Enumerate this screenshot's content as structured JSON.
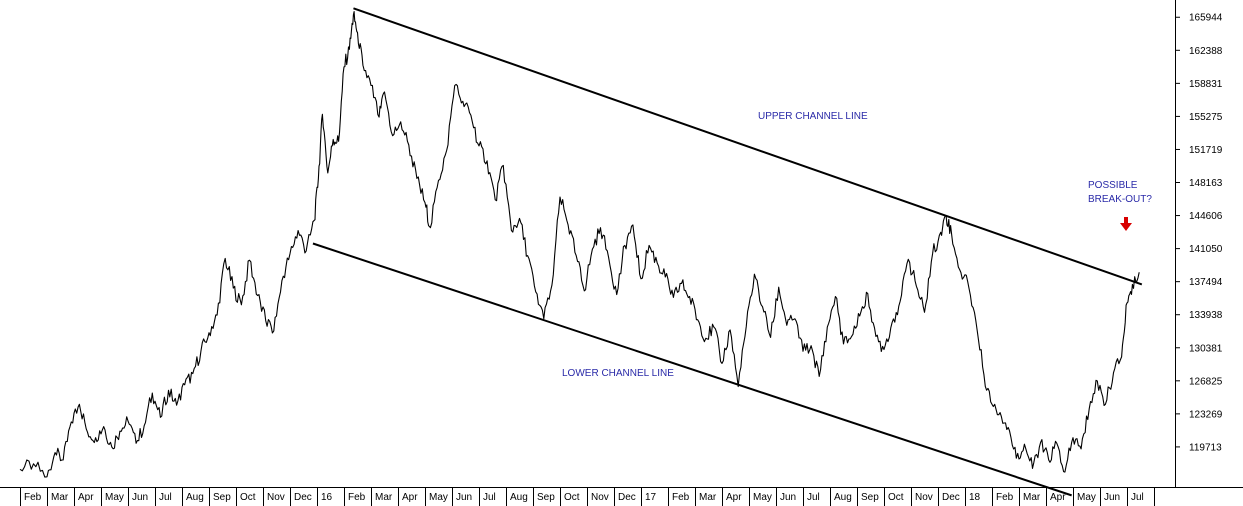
{
  "chart_data": {
    "type": "line",
    "title": "",
    "xlabel": "",
    "ylabel": "",
    "grid": false,
    "ylim": [
      115400,
      167800
    ],
    "y_ticks": [
      165944,
      162388,
      158831,
      155275,
      151719,
      148163,
      144606,
      141050,
      137494,
      133938,
      130381,
      126825,
      123269,
      119713
    ],
    "x_tick_labels": [
      "Feb",
      "Mar",
      "Apr",
      "May",
      "Jun",
      "Jul",
      "Aug",
      "Sep",
      "Oct",
      "Nov",
      "Dec",
      "16",
      "Feb",
      "Mar",
      "Apr",
      "May",
      "Jun",
      "Jul",
      "Aug",
      "Sep",
      "Oct",
      "Nov",
      "Dec",
      "17",
      "Feb",
      "Mar",
      "Apr",
      "May",
      "Jun",
      "Jul",
      "Aug",
      "Sep",
      "Oct",
      "Nov",
      "Dec",
      "18",
      "Feb",
      "Mar",
      "Apr",
      "May",
      "Jun",
      "Jul"
    ],
    "x_range_months": [
      0,
      41.6
    ],
    "series": [
      {
        "color": "#000000",
        "points": [
          [
            0.0,
            117300
          ],
          [
            0.5,
            117900
          ],
          [
            1.0,
            116500
          ],
          [
            1.3,
            119100
          ],
          [
            1.6,
            118300
          ],
          [
            1.9,
            122400
          ],
          [
            2.2,
            124300
          ],
          [
            2.5,
            121300
          ],
          [
            2.8,
            120700
          ],
          [
            3.1,
            121900
          ],
          [
            3.4,
            119700
          ],
          [
            3.7,
            121400
          ],
          [
            4.0,
            122500
          ],
          [
            4.3,
            120100
          ],
          [
            4.6,
            122000
          ],
          [
            4.9,
            125500
          ],
          [
            5.2,
            122900
          ],
          [
            5.5,
            125800
          ],
          [
            5.8,
            124200
          ],
          [
            6.1,
            126400
          ],
          [
            6.4,
            127600
          ],
          [
            6.7,
            130000
          ],
          [
            7.0,
            132000
          ],
          [
            7.3,
            133900
          ],
          [
            7.6,
            140000
          ],
          [
            7.9,
            136800
          ],
          [
            8.2,
            135000
          ],
          [
            8.5,
            139800
          ],
          [
            8.8,
            136000
          ],
          [
            9.1,
            133300
          ],
          [
            9.4,
            132200
          ],
          [
            9.7,
            137600
          ],
          [
            10.0,
            140500
          ],
          [
            10.3,
            143000
          ],
          [
            10.6,
            140800
          ],
          [
            10.9,
            144100
          ],
          [
            11.05,
            148600
          ],
          [
            11.2,
            155500
          ],
          [
            11.4,
            149200
          ],
          [
            11.6,
            152800
          ],
          [
            11.8,
            152600
          ],
          [
            12.0,
            160600
          ],
          [
            12.2,
            162500
          ],
          [
            12.35,
            166200
          ],
          [
            12.5,
            164300
          ],
          [
            12.7,
            160800
          ],
          [
            13.0,
            158600
          ],
          [
            13.3,
            155200
          ],
          [
            13.5,
            157900
          ],
          [
            13.8,
            153200
          ],
          [
            14.1,
            154700
          ],
          [
            14.4,
            152200
          ],
          [
            14.7,
            148600
          ],
          [
            15.0,
            146000
          ],
          [
            15.2,
            143300
          ],
          [
            15.5,
            148400
          ],
          [
            15.8,
            151600
          ],
          [
            16.1,
            158600
          ],
          [
            16.4,
            156900
          ],
          [
            16.7,
            155400
          ],
          [
            17.0,
            152100
          ],
          [
            17.3,
            150500
          ],
          [
            17.6,
            146300
          ],
          [
            17.9,
            150000
          ],
          [
            18.2,
            143000
          ],
          [
            18.5,
            144300
          ],
          [
            18.8,
            140300
          ],
          [
            19.1,
            136400
          ],
          [
            19.4,
            133500
          ],
          [
            19.7,
            137100
          ],
          [
            20.0,
            146600
          ],
          [
            20.3,
            143600
          ],
          [
            20.6,
            140300
          ],
          [
            20.9,
            136500
          ],
          [
            21.2,
            141000
          ],
          [
            21.5,
            143300
          ],
          [
            21.8,
            140100
          ],
          [
            22.1,
            136100
          ],
          [
            22.4,
            141400
          ],
          [
            22.7,
            143600
          ],
          [
            23.0,
            137800
          ],
          [
            23.3,
            141400
          ],
          [
            23.6,
            139500
          ],
          [
            23.9,
            138000
          ],
          [
            24.2,
            135800
          ],
          [
            24.5,
            137300
          ],
          [
            24.8,
            135900
          ],
          [
            25.1,
            133400
          ],
          [
            25.4,
            131400
          ],
          [
            25.7,
            132600
          ],
          [
            26.0,
            128700
          ],
          [
            26.3,
            132300
          ],
          [
            26.6,
            126200
          ],
          [
            26.9,
            132700
          ],
          [
            27.2,
            138300
          ],
          [
            27.5,
            134800
          ],
          [
            27.8,
            131500
          ],
          [
            28.1,
            136900
          ],
          [
            28.4,
            132800
          ],
          [
            28.7,
            133500
          ],
          [
            29.0,
            130000
          ],
          [
            29.3,
            130600
          ],
          [
            29.6,
            127300
          ],
          [
            29.9,
            132600
          ],
          [
            30.2,
            135900
          ],
          [
            30.5,
            130800
          ],
          [
            30.8,
            131600
          ],
          [
            31.1,
            133800
          ],
          [
            31.4,
            136200
          ],
          [
            31.7,
            131600
          ],
          [
            32.0,
            130200
          ],
          [
            32.3,
            133100
          ],
          [
            32.6,
            135400
          ],
          [
            32.9,
            139900
          ],
          [
            33.2,
            137000
          ],
          [
            33.5,
            134200
          ],
          [
            33.8,
            140500
          ],
          [
            34.1,
            142800
          ],
          [
            34.3,
            144600
          ],
          [
            34.5,
            142700
          ],
          [
            34.8,
            138800
          ],
          [
            35.1,
            137500
          ],
          [
            35.4,
            133300
          ],
          [
            35.7,
            127500
          ],
          [
            36.0,
            124300
          ],
          [
            36.3,
            123400
          ],
          [
            36.6,
            121800
          ],
          [
            36.9,
            118500
          ],
          [
            37.2,
            120000
          ],
          [
            37.5,
            117400
          ],
          [
            37.8,
            120200
          ],
          [
            38.1,
            118300
          ],
          [
            38.4,
            120100
          ],
          [
            38.7,
            117000
          ],
          [
            39.0,
            120700
          ],
          [
            39.3,
            119500
          ],
          [
            39.6,
            123800
          ],
          [
            39.9,
            126800
          ],
          [
            40.2,
            124300
          ],
          [
            40.5,
            127700
          ],
          [
            40.8,
            129400
          ],
          [
            41.0,
            135200
          ],
          [
            41.2,
            137200
          ],
          [
            41.45,
            138500
          ]
        ]
      }
    ],
    "overlays": [
      {
        "label": "UPPER CHANNEL LINE",
        "from": [
          12.35,
          166900
        ],
        "to": [
          41.55,
          137200
        ]
      },
      {
        "label": "LOWER CHANNEL LINE",
        "from": [
          10.85,
          141600
        ],
        "to": [
          38.95,
          114500
        ]
      }
    ],
    "annotations": [
      {
        "text": "UPPER CHANNEL LINE"
      },
      {
        "text": "LOWER CHANNEL LINE"
      },
      {
        "text": "POSSIBLE"
      },
      {
        "text": "BREAK-OUT?"
      }
    ],
    "marker_color": "#d80000"
  }
}
